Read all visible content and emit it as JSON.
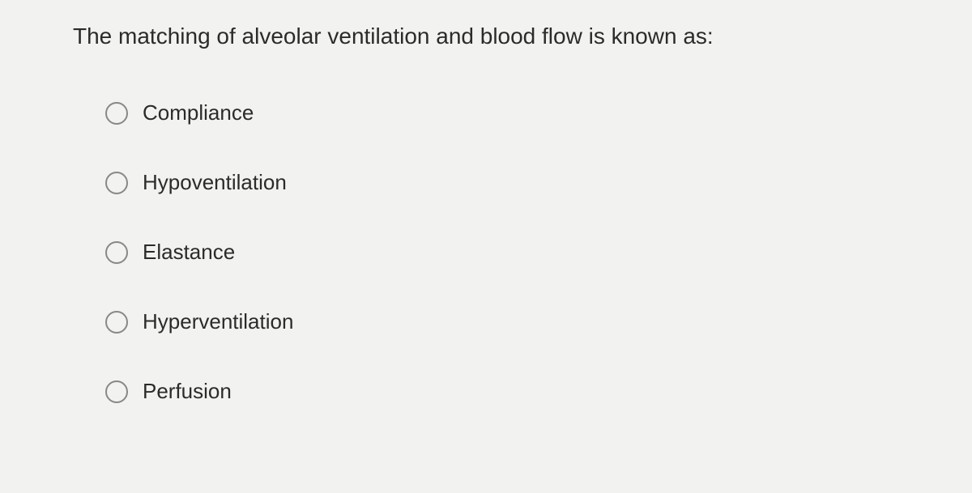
{
  "question": {
    "text": "The matching of alveolar ventilation and blood flow is known as:",
    "options": [
      {
        "label": "Compliance",
        "selected": false
      },
      {
        "label": "Hypoventilation",
        "selected": false
      },
      {
        "label": "Elastance",
        "selected": false
      },
      {
        "label": "Hyperventilation",
        "selected": false
      },
      {
        "label": "Perfusion",
        "selected": false
      }
    ]
  },
  "styling": {
    "background_color": "#f2f2f0",
    "text_color": "#2b2b2b",
    "radio_border_color": "#888888",
    "question_fontsize": 28,
    "option_fontsize": 26,
    "radio_size": 28
  }
}
